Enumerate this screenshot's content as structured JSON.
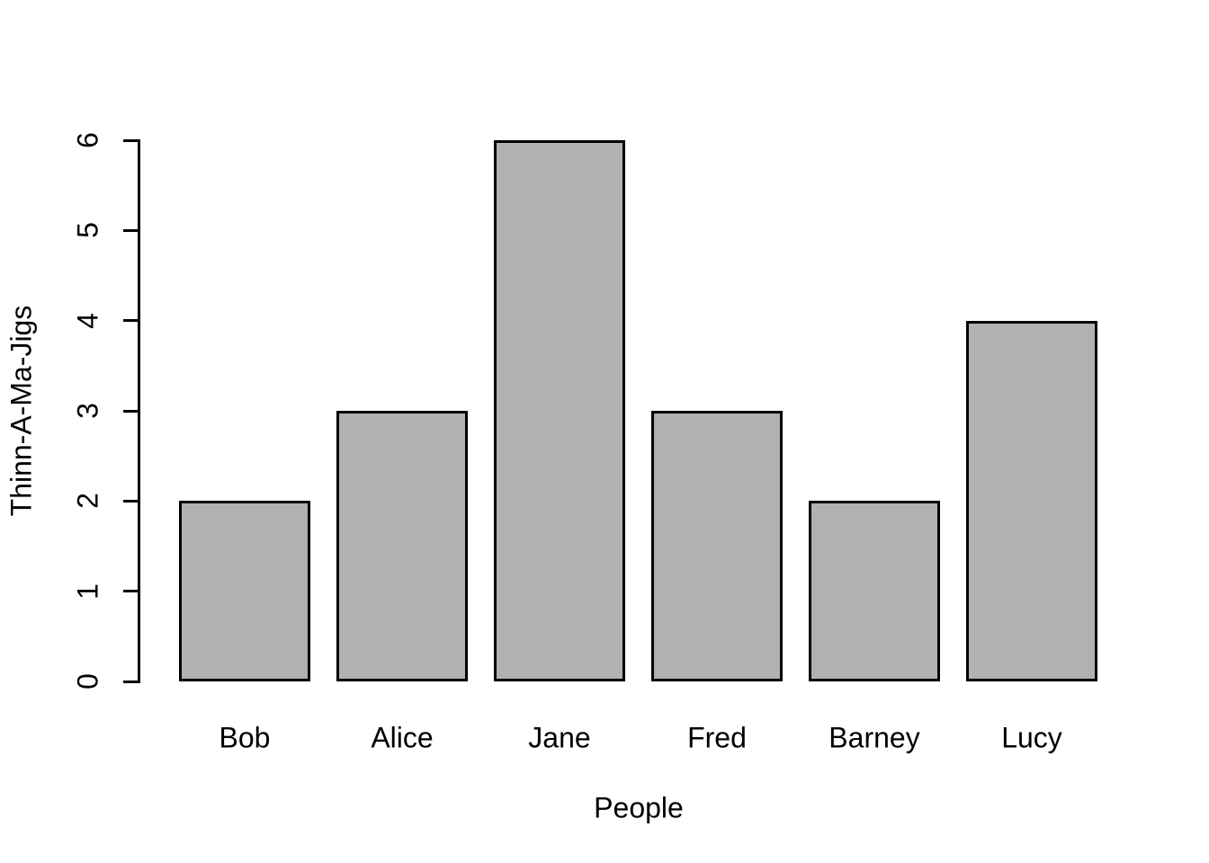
{
  "chart_data": {
    "type": "bar",
    "title": "",
    "xlabel": "People",
    "ylabel": "Thinn-A-Ma-Jigs",
    "categories": [
      "Bob",
      "Alice",
      "Jane",
      "Fred",
      "Barney",
      "Lucy"
    ],
    "values": [
      2,
      3,
      6,
      3,
      2,
      4
    ],
    "ylim": [
      0,
      6
    ],
    "yticks": [
      0,
      1,
      2,
      3,
      4,
      5,
      6
    ],
    "grid": false,
    "legend": "none",
    "colors": {
      "bar_fill": "#b1b1b1",
      "bar_border": "#000000",
      "axis": "#000000",
      "text": "#000000",
      "background": "#ffffff"
    }
  }
}
